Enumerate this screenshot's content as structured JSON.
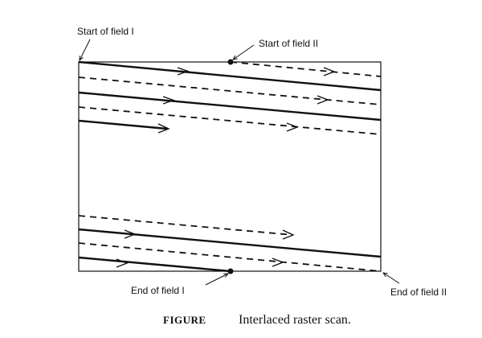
{
  "labels": {
    "start_field_1": "Start of field I",
    "start_field_2": "Start of field II",
    "end_field_1": "End of field I",
    "end_field_2": "End of field II"
  },
  "caption": {
    "label": "FIGURE",
    "text": "Interlaced raster scan."
  },
  "legend": {
    "field_1": "solid lines",
    "field_2": "dashed lines"
  }
}
